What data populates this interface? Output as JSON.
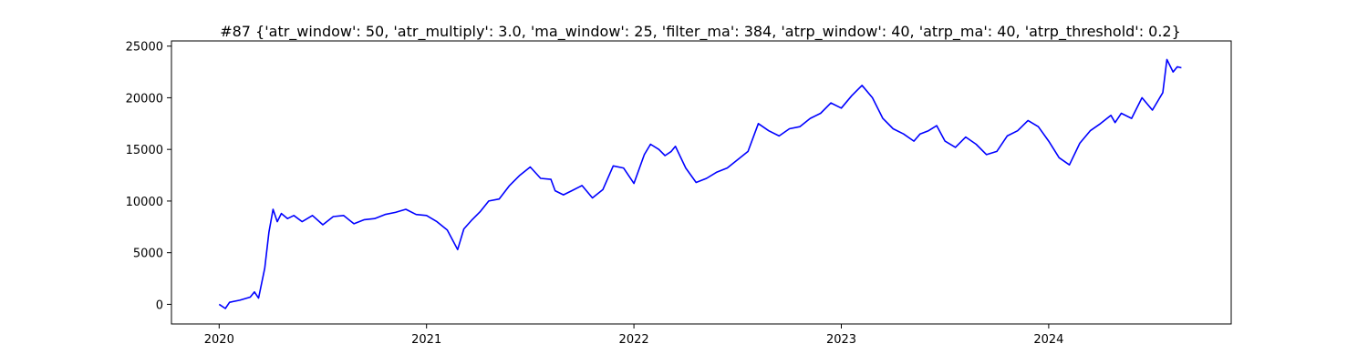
{
  "chart_data": {
    "type": "line",
    "title": "#87 {'atr_window': 50, 'atr_multiply': 3.0, 'ma_window': 25, 'filter_ma': 384, 'atrp_window': 40, 'atrp_ma': 40, 'atrp_threshold': 0.2}",
    "xlabel": "",
    "ylabel": "",
    "xlim": [
      2019.77,
      2024.88
    ],
    "ylim": [
      -1900,
      25500
    ],
    "x_ticks": [
      2020,
      2021,
      2022,
      2023,
      2024
    ],
    "x_tick_labels": [
      "2020",
      "2021",
      "2022",
      "2023",
      "2024"
    ],
    "y_ticks": [
      0,
      5000,
      10000,
      15000,
      20000,
      25000
    ],
    "y_tick_labels": [
      "0",
      "5000",
      "10000",
      "15000",
      "20000",
      "25000"
    ],
    "grid": false,
    "legend": "none",
    "series": [
      {
        "color": "#0000ff",
        "x": [
          2020.0,
          2020.03,
          2020.05,
          2020.1,
          2020.15,
          2020.17,
          2020.19,
          2020.22,
          2020.24,
          2020.26,
          2020.28,
          2020.3,
          2020.33,
          2020.36,
          2020.4,
          2020.45,
          2020.5,
          2020.55,
          2020.6,
          2020.65,
          2020.7,
          2020.75,
          2020.8,
          2020.85,
          2020.9,
          2020.95,
          2021.0,
          2021.05,
          2021.1,
          2021.15,
          2021.18,
          2021.22,
          2021.26,
          2021.3,
          2021.35,
          2021.4,
          2021.45,
          2021.5,
          2021.55,
          2021.6,
          2021.62,
          2021.66,
          2021.7,
          2021.75,
          2021.8,
          2021.85,
          2021.9,
          2021.95,
          2022.0,
          2022.05,
          2022.08,
          2022.12,
          2022.15,
          2022.18,
          2022.2,
          2022.25,
          2022.3,
          2022.35,
          2022.4,
          2022.45,
          2022.5,
          2022.55,
          2022.6,
          2022.65,
          2022.7,
          2022.75,
          2022.8,
          2022.85,
          2022.9,
          2022.95,
          2023.0,
          2023.05,
          2023.1,
          2023.15,
          2023.2,
          2023.25,
          2023.3,
          2023.35,
          2023.38,
          2023.42,
          2023.46,
          2023.5,
          2023.55,
          2023.6,
          2023.65,
          2023.7,
          2023.75,
          2023.8,
          2023.85,
          2023.9,
          2023.95,
          2024.0,
          2024.05,
          2024.1,
          2024.15,
          2024.2,
          2024.25,
          2024.3,
          2024.32,
          2024.35,
          2024.4,
          2024.45,
          2024.5,
          2024.55,
          2024.57,
          2024.6,
          2024.62,
          2024.64
        ],
        "y": [
          0,
          -400,
          200,
          400,
          700,
          1200,
          600,
          3500,
          7000,
          9200,
          8000,
          8800,
          8300,
          8600,
          8000,
          8600,
          7700,
          8500,
          8600,
          7800,
          8200,
          8300,
          8700,
          8900,
          9200,
          8700,
          8600,
          8000,
          7200,
          5300,
          7300,
          8200,
          9000,
          10000,
          10200,
          11500,
          12500,
          13300,
          12200,
          12100,
          11000,
          10600,
          11000,
          11500,
          10300,
          11100,
          13400,
          13200,
          11700,
          14500,
          15500,
          15000,
          14400,
          14800,
          15300,
          13200,
          11800,
          12200,
          12800,
          13200,
          14000,
          14800,
          17500,
          16800,
          16300,
          17000,
          17200,
          18000,
          18500,
          19500,
          19000,
          20200,
          21200,
          20000,
          18000,
          17000,
          16500,
          15800,
          16500,
          16800,
          17300,
          15800,
          15200,
          16200,
          15500,
          14500,
          14800,
          16300,
          16800,
          17800,
          17200,
          15800,
          14200,
          13500,
          15600,
          16800,
          17500,
          18300,
          17600,
          18500,
          18000,
          20000,
          18800,
          20500,
          23700,
          22500,
          23000,
          22900
        ]
      }
    ]
  }
}
